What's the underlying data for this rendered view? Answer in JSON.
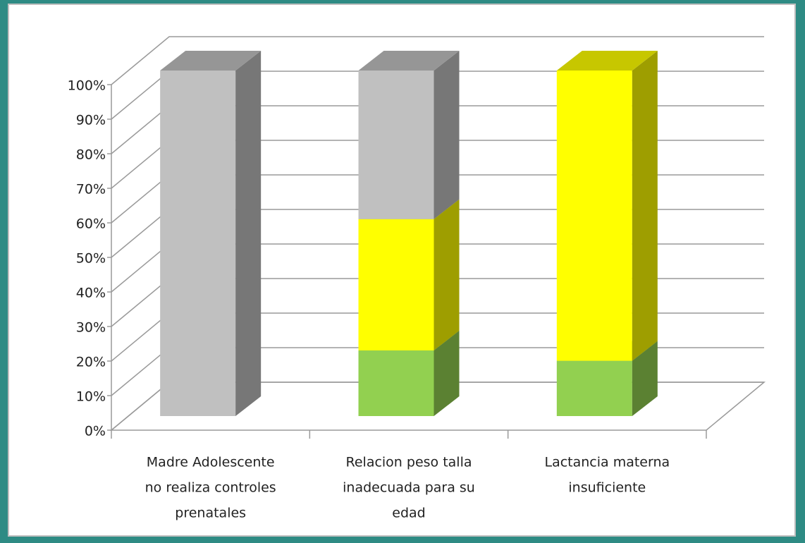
{
  "chart_data": {
    "type": "bar3d_stacked",
    "categories": [
      [
        "Madre Adolescente",
        "no realiza controles",
        "prenatales"
      ],
      [
        "Relacion peso talla",
        "inadecuada para su",
        "edad"
      ],
      [
        "Lactancia materna",
        "insuficiente"
      ]
    ],
    "series": [
      {
        "color": "#92d050",
        "values": [
          0,
          19,
          16
        ]
      },
      {
        "color": "#ffff00",
        "values": [
          0,
          38,
          84
        ]
      },
      {
        "color": "#c0c0c0",
        "values": [
          100,
          43,
          0
        ]
      }
    ],
    "ylim": [
      0,
      100
    ],
    "yticks": [
      {
        "value": 0,
        "label": "0%"
      },
      {
        "value": 10,
        "label": "10%"
      },
      {
        "value": 20,
        "label": "20%"
      },
      {
        "value": 30,
        "label": "30%"
      },
      {
        "value": 40,
        "label": "40%"
      },
      {
        "value": 50,
        "label": "50%"
      },
      {
        "value": 60,
        "label": "60%"
      },
      {
        "value": 70,
        "label": "70%"
      },
      {
        "value": 80,
        "label": "80%"
      },
      {
        "value": 90,
        "label": "90%"
      },
      {
        "value": 100,
        "label": "100%"
      }
    ],
    "grid": true
  }
}
